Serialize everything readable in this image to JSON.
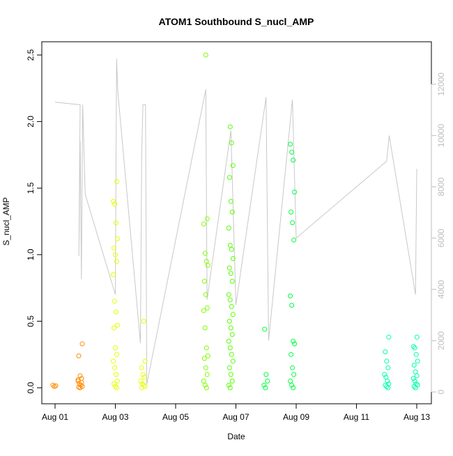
{
  "chart_data": {
    "type": "scatter",
    "title": "ATOM1 Southbound S_nucl_AMP",
    "xlabel": "Date",
    "ylabel": "S_nucl_AMP",
    "x_ticks": [
      "Aug 01",
      "Aug 03",
      "Aug 05",
      "Aug 07",
      "Aug 09",
      "Aug 11",
      "Aug 13"
    ],
    "y_ticks": [
      "0.0",
      "0.5",
      "1.0",
      "1.5",
      "2.0",
      "2.5"
    ],
    "y2_ticks": [
      "0",
      "2000",
      "4000",
      "6000",
      "8000",
      "10000",
      "12000"
    ],
    "x_range": [
      "2024-08-01",
      "2024-08-13"
    ],
    "ylim": [
      0,
      2.5
    ],
    "y2lim": [
      0,
      12000
    ],
    "grid": false,
    "legend": "none",
    "point_color_scale": [
      "#ff8c00",
      "#ffd700",
      "#e6ff00",
      "#7fff00",
      "#00ff40",
      "#00ffaa"
    ],
    "line_color": "#c8c8c8",
    "clusters": [
      {
        "date": "2024-08-01",
        "values": [
          0.02,
          0.01,
          0.015
        ],
        "color": "#ff8c00"
      },
      {
        "date": "2024-08-01T20:00",
        "values": [
          0.33,
          0.24,
          0.09,
          0.07,
          0.05,
          0.03,
          0.02,
          0.01,
          0.005,
          0.0,
          0.04,
          0.06
        ],
        "color": "#ff8c00"
      },
      {
        "date": "2024-08-03",
        "values": [
          1.55,
          1.4,
          1.38,
          1.24,
          1.12,
          1.05,
          1.0,
          0.95,
          0.85,
          0.65,
          0.57,
          0.47,
          0.45,
          0.3,
          0.25,
          0.2,
          0.15,
          0.1,
          0.05,
          0.03,
          0.01,
          0.0
        ],
        "color": "#e6ff00"
      },
      {
        "date": "2024-08-03T22:00",
        "values": [
          0.5,
          0.2,
          0.15,
          0.1,
          0.08,
          0.05,
          0.03,
          0.02,
          0.01,
          0.0
        ],
        "color": "#e6ff00"
      },
      {
        "date": "2024-08-06",
        "values": [
          2.5,
          1.27,
          1.23,
          1.01,
          0.95,
          0.92,
          0.8,
          0.7,
          0.6,
          0.58,
          0.45,
          0.3,
          0.24,
          0.22,
          0.15,
          0.1,
          0.05,
          0.02,
          0.0
        ],
        "color": "#7fff00"
      },
      {
        "date": "2024-08-06T20:00",
        "values": [
          1.96,
          1.84,
          1.67,
          1.58,
          1.4,
          1.32,
          1.2,
          1.07,
          1.04,
          0.97,
          0.9,
          0.86,
          0.8,
          0.7,
          0.66,
          0.61,
          0.55,
          0.5,
          0.45,
          0.4,
          0.35,
          0.3,
          0.25,
          0.2,
          0.15,
          0.1,
          0.05,
          0.02,
          0.0
        ],
        "color": "#55ff00"
      },
      {
        "date": "2024-08-08",
        "values": [
          0.44,
          0.1,
          0.05,
          0.02,
          0.0
        ],
        "color": "#00ff40"
      },
      {
        "date": "2024-08-08T21:00",
        "values": [
          1.83,
          1.77,
          1.71,
          1.47,
          1.32,
          1.24,
          1.11,
          0.69,
          0.62,
          0.35,
          0.33,
          0.25,
          0.15,
          0.1,
          0.05,
          0.02,
          0.0
        ],
        "color": "#00ff40"
      },
      {
        "date": "2024-08-12",
        "values": [
          0.38,
          0.27,
          0.2,
          0.15,
          0.1,
          0.08,
          0.05,
          0.03,
          0.02,
          0.01,
          0.0
        ],
        "color": "#00ffaa"
      },
      {
        "date": "2024-08-12T23:00",
        "values": [
          0.38,
          0.31,
          0.3,
          0.25,
          0.2,
          0.17,
          0.12,
          0.09,
          0.07,
          0.05,
          0.03,
          0.02,
          0.01,
          0.0
        ],
        "color": "#00ffaa"
      }
    ],
    "line_series": [
      {
        "date": "2024-08-01",
        "value": 11300
      },
      {
        "date": "2024-08-01T20:00",
        "value": 11200
      },
      {
        "date": "2024-08-01T19:00",
        "value": 5300
      },
      {
        "date": "2024-08-01T20:00",
        "value": 9800
      },
      {
        "date": "2024-08-01T21:00",
        "value": 4400
      },
      {
        "date": "2024-08-01T22:00",
        "value": 11200
      },
      {
        "date": "2024-08-02",
        "value": 7700
      },
      {
        "date": "2024-08-03",
        "value": 3800
      },
      {
        "date": "2024-08-03T01:00",
        "value": 13000
      },
      {
        "date": "2024-08-03T02:00",
        "value": 11700
      },
      {
        "date": "2024-08-03T20:00",
        "value": 1900
      },
      {
        "date": "2024-08-03T21:00",
        "value": 9200
      },
      {
        "date": "2024-08-03T22:00",
        "value": 11200
      },
      {
        "date": "2024-08-04",
        "value": 11200
      },
      {
        "date": "2024-08-04T01:00",
        "value": 300
      },
      {
        "date": "2024-08-06",
        "value": 11800
      },
      {
        "date": "2024-08-06T01:00",
        "value": 3600
      },
      {
        "date": "2024-08-06T20:00",
        "value": 10200
      },
      {
        "date": "2024-08-07",
        "value": 3400
      },
      {
        "date": "2024-08-08",
        "value": 11500
      },
      {
        "date": "2024-08-08T02:00",
        "value": 2000
      },
      {
        "date": "2024-08-08T21:00",
        "value": 11400
      },
      {
        "date": "2024-08-09",
        "value": 6000
      },
      {
        "date": "2024-08-12",
        "value": 9000
      },
      {
        "date": "2024-08-12T02:00",
        "value": 10000
      },
      {
        "date": "2024-08-12T23:00",
        "value": 3800
      },
      {
        "date": "2024-08-13",
        "value": 8700
      }
    ]
  }
}
